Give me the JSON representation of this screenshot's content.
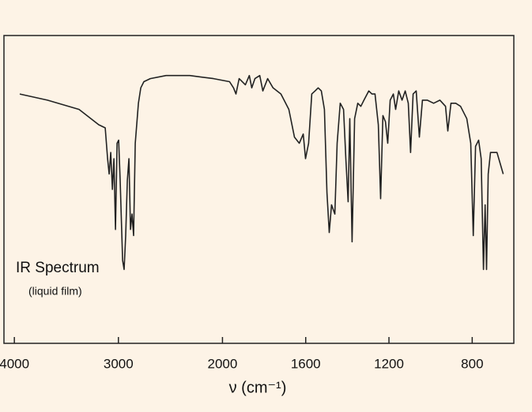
{
  "chart_data": {
    "type": "line",
    "annotation": "IR Spectrum",
    "subannotation": "(liquid film)",
    "x_label": "ν (cm⁻¹)",
    "x": [
      3948,
      3682,
      3378,
      3188,
      3127,
      3104,
      3089,
      3074,
      3058,
      3043,
      3028,
      3013,
      2998,
      2983,
      2960,
      2945,
      2930,
      2914,
      2899,
      2884,
      2869,
      2854,
      2838,
      2808,
      2785,
      2755,
      2694,
      2542,
      2314,
      2086,
      1966,
      1947,
      1935,
      1920,
      1890,
      1871,
      1859,
      1844,
      1821,
      1806,
      1783,
      1757,
      1719,
      1681,
      1654,
      1631,
      1612,
      1601,
      1586,
      1571,
      1555,
      1540,
      1525,
      1510,
      1498,
      1487,
      1476,
      1460,
      1449,
      1434,
      1418,
      1407,
      1396,
      1388,
      1377,
      1365,
      1350,
      1335,
      1320,
      1297,
      1282,
      1267,
      1251,
      1240,
      1229,
      1217,
      1206,
      1194,
      1179,
      1168,
      1153,
      1137,
      1122,
      1107,
      1096,
      1084,
      1069,
      1054,
      1039,
      1016,
      985,
      955,
      928,
      917,
      902,
      879,
      856,
      826,
      807,
      795,
      784,
      769,
      757,
      746,
      738,
      731,
      723,
      712,
      681,
      651
    ],
    "values": [
      81,
      79,
      76,
      71,
      70,
      60,
      55,
      62,
      50,
      60,
      37,
      65,
      66,
      53,
      27,
      24,
      35,
      53,
      60,
      37,
      42,
      35,
      65,
      78,
      83,
      85,
      86,
      87,
      87,
      86,
      85,
      83,
      81,
      86,
      84,
      87,
      83,
      86,
      87,
      82,
      86,
      83,
      81,
      76,
      67,
      65,
      68,
      60,
      65,
      81,
      82,
      83,
      82,
      76,
      49,
      36,
      45,
      42,
      65,
      78,
      76,
      60,
      46,
      73,
      33,
      73,
      78,
      77,
      79,
      82,
      81,
      81,
      71,
      47,
      74,
      72,
      65,
      79,
      81,
      76,
      82,
      79,
      82,
      78,
      62,
      81,
      82,
      67,
      79,
      79,
      78,
      79,
      77,
      69,
      78,
      78,
      77,
      73,
      65,
      35,
      64,
      66,
      60,
      24,
      45,
      24,
      55,
      62,
      62,
      55
    ],
    "color": "#222222",
    "xlim": [
      4100,
      600
    ],
    "x_scale_break": 2000,
    "x_scale_factor": 2,
    "ylim": [
      0,
      100
    ],
    "xticks": [
      4000,
      3000,
      2000,
      1600,
      1200,
      800
    ]
  }
}
